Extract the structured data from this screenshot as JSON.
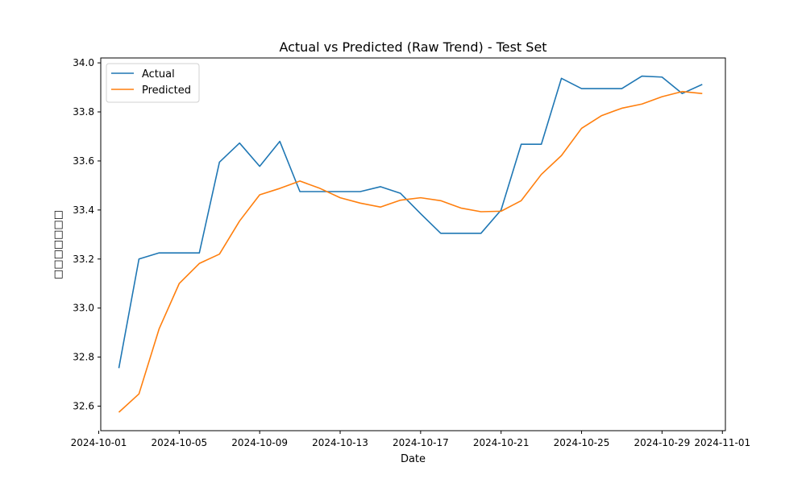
{
  "chart_data": {
    "type": "line",
    "title": "Actual vs Predicted (Raw Trend) - Test Set",
    "xlabel": "Date",
    "ylabel": "□□□□□□□",
    "ylim": [
      32.5,
      34.02
    ],
    "xlim": [
      "2024-10-01",
      "2024-11-01"
    ],
    "grid": false,
    "legend_position": "top-left",
    "x_ticks": [
      "2024-10-01",
      "2024-10-05",
      "2024-10-09",
      "2024-10-13",
      "2024-10-17",
      "2024-10-21",
      "2024-10-25",
      "2024-10-29",
      "2024-11-01"
    ],
    "y_ticks": [
      "32.6",
      "32.8",
      "33.0",
      "33.2",
      "33.4",
      "33.6",
      "33.8",
      "34.0"
    ],
    "x": [
      "2024-10-02",
      "2024-10-03",
      "2024-10-04",
      "2024-10-05",
      "2024-10-06",
      "2024-10-07",
      "2024-10-08",
      "2024-10-09",
      "2024-10-10",
      "2024-10-11",
      "2024-10-12",
      "2024-10-13",
      "2024-10-14",
      "2024-10-15",
      "2024-10-16",
      "2024-10-17",
      "2024-10-18",
      "2024-10-19",
      "2024-10-20",
      "2024-10-21",
      "2024-10-22",
      "2024-10-23",
      "2024-10-24",
      "2024-10-25",
      "2024-10-26",
      "2024-10-27",
      "2024-10-28",
      "2024-10-29",
      "2024-10-30",
      "2024-10-31"
    ],
    "series": [
      {
        "name": "Actual",
        "color": "#1f77b4",
        "values": [
          32.755,
          33.2,
          33.225,
          33.225,
          33.225,
          33.595,
          33.673,
          33.578,
          33.68,
          33.475,
          33.475,
          33.475,
          33.475,
          33.495,
          33.468,
          33.385,
          33.305,
          33.305,
          33.305,
          33.4,
          33.668,
          33.668,
          33.937,
          33.895,
          33.895,
          33.895,
          33.946,
          33.942,
          33.875,
          33.912
        ]
      },
      {
        "name": "Predicted",
        "color": "#ff7f0e",
        "values": [
          32.575,
          32.65,
          32.915,
          33.1,
          33.182,
          33.22,
          33.355,
          33.462,
          33.488,
          33.518,
          33.488,
          33.45,
          33.428,
          33.412,
          33.44,
          33.45,
          33.438,
          33.408,
          33.393,
          33.395,
          33.438,
          33.545,
          33.622,
          33.733,
          33.785,
          33.815,
          33.832,
          33.862,
          33.883,
          33.875
        ]
      }
    ]
  }
}
